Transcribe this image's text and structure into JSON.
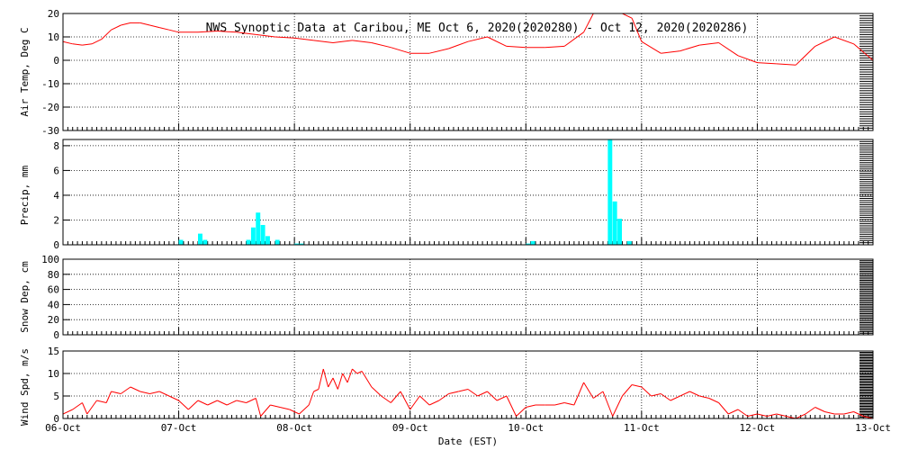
{
  "title": "NWS Synoptic Data at Caribou, ME   Oct  6, 2020(2020280) - Oct 12, 2020(2020286)",
  "xlabel": "Date (EST)",
  "chart_data": [
    {
      "type": "line",
      "ylabel": "Air Temp, Deg C",
      "ylim": [
        -30,
        20
      ],
      "yticks": [
        20,
        10,
        0,
        -10,
        -20,
        -30
      ],
      "xlim": [
        "2020-10-06",
        "2020-10-13"
      ],
      "grid": true,
      "color": "#ff0000",
      "x": [
        "2020-10-06 00:00",
        "2020-10-06 02:00",
        "2020-10-06 04:00",
        "2020-10-06 06:00",
        "2020-10-06 08:00",
        "2020-10-06 10:00",
        "2020-10-06 12:00",
        "2020-10-06 14:00",
        "2020-10-06 16:00",
        "2020-10-06 18:00",
        "2020-10-06 20:00",
        "2020-10-06 22:00",
        "2020-10-07 00:00",
        "2020-10-07 04:00",
        "2020-10-07 08:00",
        "2020-10-07 12:00",
        "2020-10-07 16:00",
        "2020-10-07 20:00",
        "2020-10-08 00:00",
        "2020-10-08 04:00",
        "2020-10-08 08:00",
        "2020-10-08 12:00",
        "2020-10-08 16:00",
        "2020-10-08 20:00",
        "2020-10-09 00:00",
        "2020-10-09 04:00",
        "2020-10-09 08:00",
        "2020-10-09 12:00",
        "2020-10-09 16:00",
        "2020-10-09 20:00",
        "2020-10-10 00:00",
        "2020-10-10 04:00",
        "2020-10-10 08:00",
        "2020-10-10 12:00",
        "2020-10-10 14:00",
        "2020-10-10 16:00",
        "2020-10-10 18:00",
        "2020-10-10 20:00",
        "2020-10-10 22:00",
        "2020-10-11 00:00",
        "2020-10-11 04:00",
        "2020-10-11 08:00",
        "2020-10-11 12:00",
        "2020-10-11 16:00",
        "2020-10-11 20:00",
        "2020-10-12 00:00",
        "2020-10-12 04:00",
        "2020-10-12 08:00",
        "2020-10-12 12:00",
        "2020-10-12 16:00",
        "2020-10-12 20:00",
        "2020-10-13 00:00"
      ],
      "values": [
        8,
        7,
        6.5,
        7,
        9,
        13,
        15,
        16,
        16,
        15,
        14,
        13,
        12,
        12,
        12.5,
        12,
        11,
        10,
        9.5,
        8.5,
        7.5,
        8.5,
        7.5,
        5.5,
        3,
        3,
        5,
        8,
        10,
        6,
        5.5,
        5.5,
        6,
        12,
        20,
        20,
        20,
        20,
        18,
        8,
        3,
        4,
        6.5,
        7.5,
        2,
        -1,
        -1.5,
        -2,
        6,
        10,
        7,
        0
      ]
    },
    {
      "type": "bar",
      "ylabel": "Precip, mm",
      "ylim": [
        0,
        8.5
      ],
      "yticks": [
        8,
        6,
        4,
        2,
        0
      ],
      "xlim": [
        "2020-10-06",
        "2020-10-13"
      ],
      "grid": true,
      "color": "#00ffff",
      "x": [
        "2020-10-07 00:00",
        "2020-10-07 04:00",
        "2020-10-07 05:00",
        "2020-10-07 14:00",
        "2020-10-07 15:00",
        "2020-10-07 16:00",
        "2020-10-07 17:00",
        "2020-10-07 18:00",
        "2020-10-07 20:00",
        "2020-10-08 00:00",
        "2020-10-08 01:00",
        "2020-10-10 00:00",
        "2020-10-10 01:00",
        "2020-10-10 17:00",
        "2020-10-10 18:00",
        "2020-10-10 19:00",
        "2020-10-10 21:00"
      ],
      "values": [
        0.4,
        0.9,
        0.4,
        0.4,
        1.4,
        2.6,
        1.6,
        0.7,
        0.4,
        0.1,
        0.1,
        0.1,
        0.3,
        8.6,
        3.5,
        2.1,
        0.3
      ]
    },
    {
      "type": "line",
      "ylabel": "Snow Dep, cm",
      "ylim": [
        0,
        100
      ],
      "yticks": [
        100,
        80,
        60,
        40,
        20,
        0
      ],
      "xlim": [
        "2020-10-06",
        "2020-10-13"
      ],
      "grid": true,
      "x": [],
      "values": []
    },
    {
      "type": "line",
      "ylabel": "Wind Spd, m/s",
      "ylim": [
        0,
        15
      ],
      "yticks": [
        15,
        10,
        5,
        0
      ],
      "xlim": [
        "2020-10-06",
        "2020-10-13"
      ],
      "xticks": [
        "06-Oct",
        "07-Oct",
        "08-Oct",
        "09-Oct",
        "10-Oct",
        "11-Oct",
        "12-Oct",
        "13-Oct"
      ],
      "grid": true,
      "color": "#ff0000",
      "x": [
        "2020-10-06 00:00",
        "2020-10-06 02:00",
        "2020-10-06 04:00",
        "2020-10-06 05:00",
        "2020-10-06 07:00",
        "2020-10-06 09:00",
        "2020-10-06 10:00",
        "2020-10-06 12:00",
        "2020-10-06 14:00",
        "2020-10-06 16:00",
        "2020-10-06 18:00",
        "2020-10-06 20:00",
        "2020-10-06 22:00",
        "2020-10-07 00:00",
        "2020-10-07 02:00",
        "2020-10-07 04:00",
        "2020-10-07 06:00",
        "2020-10-07 08:00",
        "2020-10-07 10:00",
        "2020-10-07 12:00",
        "2020-10-07 14:00",
        "2020-10-07 16:00",
        "2020-10-07 17:00",
        "2020-10-07 19:00",
        "2020-10-07 21:00",
        "2020-10-07 23:00",
        "2020-10-08 01:00",
        "2020-10-08 03:00",
        "2020-10-08 04:00",
        "2020-10-08 05:00",
        "2020-10-08 06:00",
        "2020-10-08 07:00",
        "2020-10-08 08:00",
        "2020-10-08 09:00",
        "2020-10-08 10:00",
        "2020-10-08 11:00",
        "2020-10-08 12:00",
        "2020-10-08 13:00",
        "2020-10-08 14:00",
        "2020-10-08 16:00",
        "2020-10-08 18:00",
        "2020-10-08 20:00",
        "2020-10-08 22:00",
        "2020-10-09 00:00",
        "2020-10-09 02:00",
        "2020-10-09 04:00",
        "2020-10-09 06:00",
        "2020-10-09 08:00",
        "2020-10-09 10:00",
        "2020-10-09 12:00",
        "2020-10-09 14:00",
        "2020-10-09 16:00",
        "2020-10-09 18:00",
        "2020-10-09 20:00",
        "2020-10-09 22:00",
        "2020-10-10 00:00",
        "2020-10-10 02:00",
        "2020-10-10 04:00",
        "2020-10-10 06:00",
        "2020-10-10 08:00",
        "2020-10-10 10:00",
        "2020-10-10 12:00",
        "2020-10-10 14:00",
        "2020-10-10 16:00",
        "2020-10-10 18:00",
        "2020-10-10 20:00",
        "2020-10-10 22:00",
        "2020-10-11 00:00",
        "2020-10-11 02:00",
        "2020-10-11 04:00",
        "2020-10-11 06:00",
        "2020-10-11 08:00",
        "2020-10-11 10:00",
        "2020-10-11 12:00",
        "2020-10-11 14:00",
        "2020-10-11 16:00",
        "2020-10-11 18:00",
        "2020-10-11 20:00",
        "2020-10-11 22:00",
        "2020-10-12 00:00",
        "2020-10-12 02:00",
        "2020-10-12 04:00",
        "2020-10-12 06:00",
        "2020-10-12 08:00",
        "2020-10-12 10:00",
        "2020-10-12 12:00",
        "2020-10-12 14:00",
        "2020-10-12 16:00",
        "2020-10-12 18:00",
        "2020-10-12 20:00",
        "2020-10-12 22:00",
        "2020-10-13 00:00"
      ],
      "values": [
        1,
        2,
        3.5,
        1,
        4,
        3.5,
        6,
        5.5,
        7,
        6,
        5.5,
        6,
        5,
        4,
        2,
        4,
        3,
        4,
        3,
        4,
        3.5,
        4.5,
        0.5,
        3,
        2.5,
        2,
        1,
        3,
        6,
        6.5,
        11,
        7,
        9,
        6.5,
        10,
        8,
        11,
        10,
        10.5,
        7,
        5,
        3.5,
        6,
        2,
        5,
        3,
        4,
        5.5,
        6,
        6.5,
        5,
        6,
        4,
        5,
        0.5,
        2.5,
        3,
        3,
        3,
        3.5,
        3,
        8,
        4.5,
        6,
        0.5,
        5,
        7.5,
        7,
        5,
        5.5,
        4,
        5,
        6,
        5,
        4.5,
        3.5,
        1,
        2,
        0.5,
        1,
        0.5,
        1,
        0.5,
        0,
        1,
        2.5,
        1.5,
        1,
        1,
        1.5,
        0.5,
        0
      ]
    }
  ]
}
